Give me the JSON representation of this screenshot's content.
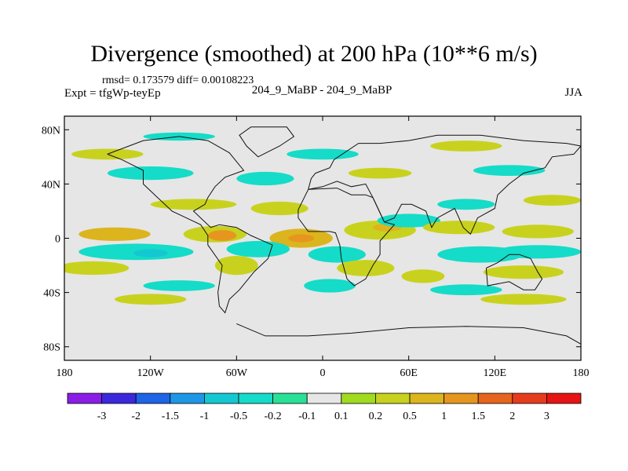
{
  "chart_data": {
    "type": "heatmap",
    "title": "Divergence (smoothed) at 200 hPa (10**6 m/s)",
    "stats_line": "rmsd= 0.173579 diff= 0.00108223",
    "expt_line": "Expt = tfgWp-teyEp",
    "cases_line": "204_9_MaBP - 204_9_MaBP",
    "season": "JJA",
    "x_axis": {
      "range": [
        -180,
        180
      ],
      "ticks": [
        {
          "value": -180,
          "label": "180"
        },
        {
          "value": -120,
          "label": "120W"
        },
        {
          "value": -60,
          "label": "60W"
        },
        {
          "value": 0,
          "label": "0"
        },
        {
          "value": 60,
          "label": "60E"
        },
        {
          "value": 120,
          "label": "120E"
        },
        {
          "value": 180,
          "label": "180"
        }
      ]
    },
    "y_axis": {
      "range": [
        -90,
        90
      ],
      "ticks": [
        {
          "value": 80,
          "label": "80N"
        },
        {
          "value": 40,
          "label": "40N"
        },
        {
          "value": 0,
          "label": "0"
        },
        {
          "value": -40,
          "label": "40S"
        },
        {
          "value": -80,
          "label": "80S"
        }
      ]
    },
    "colorbar": {
      "colors": [
        "#8a1ee6",
        "#3c28dc",
        "#1e64e6",
        "#1e96e6",
        "#14c8d2",
        "#14dcc8",
        "#28e196",
        "#e6e6e6",
        "#a0dc1e",
        "#c8d21e",
        "#dcb41e",
        "#e6961e",
        "#e6641e",
        "#e63c1e",
        "#e61414"
      ],
      "levels": [
        "-3",
        "-2",
        "-1.5",
        "-1",
        "-0.5",
        "-0.2",
        "-0.1",
        "0.1",
        "0.2",
        "0.5",
        "1",
        "1.5",
        "2",
        "3"
      ]
    },
    "features": [
      {
        "lon": -75,
        "lat": 3,
        "rx": 22,
        "ry": 6,
        "level": "0.2"
      },
      {
        "lon": -70,
        "lat": 2,
        "rx": 10,
        "ry": 4,
        "level": "1"
      },
      {
        "lon": -15,
        "lat": 0,
        "rx": 22,
        "ry": 7,
        "level": "0.5"
      },
      {
        "lon": -15,
        "lat": 0,
        "rx": 9,
        "ry": 3,
        "level": "1"
      },
      {
        "lon": 40,
        "lat": 6,
        "rx": 25,
        "ry": 7,
        "level": "0.2"
      },
      {
        "lon": 45,
        "lat": 8,
        "rx": 10,
        "ry": 3,
        "level": "0.5"
      },
      {
        "lon": 60,
        "lat": 13,
        "rx": 22,
        "ry": 5,
        "level": "-0.2"
      },
      {
        "lon": 95,
        "lat": 8,
        "rx": 25,
        "ry": 5,
        "level": "0.2"
      },
      {
        "lon": -145,
        "lat": 3,
        "rx": 25,
        "ry": 5,
        "level": "0.5"
      },
      {
        "lon": 150,
        "lat": 5,
        "rx": 25,
        "ry": 5,
        "level": "0.2"
      },
      {
        "lon": -130,
        "lat": -10,
        "rx": 40,
        "ry": 6,
        "level": "-0.2"
      },
      {
        "lon": -120,
        "lat": -11,
        "rx": 12,
        "ry": 3,
        "level": "-0.5"
      },
      {
        "lon": -45,
        "lat": -8,
        "rx": 22,
        "ry": 6,
        "level": "-0.2"
      },
      {
        "lon": 10,
        "lat": -12,
        "rx": 20,
        "ry": 6,
        "level": "-0.2"
      },
      {
        "lon": 110,
        "lat": -12,
        "rx": 30,
        "ry": 6,
        "level": "-0.2"
      },
      {
        "lon": 150,
        "lat": -10,
        "rx": 30,
        "ry": 5,
        "level": "-0.2"
      },
      {
        "lon": -160,
        "lat": -22,
        "rx": 25,
        "ry": 5,
        "level": "0.2"
      },
      {
        "lon": -60,
        "lat": -20,
        "rx": 15,
        "ry": 7,
        "level": "0.2"
      },
      {
        "lon": 30,
        "lat": -22,
        "rx": 20,
        "ry": 6,
        "level": "0.2"
      },
      {
        "lon": 70,
        "lat": -28,
        "rx": 15,
        "ry": 5,
        "level": "0.2"
      },
      {
        "lon": 140,
        "lat": -25,
        "rx": 28,
        "ry": 5,
        "level": "0.2"
      },
      {
        "lon": -100,
        "lat": -35,
        "rx": 25,
        "ry": 4,
        "level": "-0.2"
      },
      {
        "lon": 5,
        "lat": -35,
        "rx": 18,
        "ry": 5,
        "level": "-0.2"
      },
      {
        "lon": 100,
        "lat": -38,
        "rx": 25,
        "ry": 4,
        "level": "-0.2"
      },
      {
        "lon": -120,
        "lat": -45,
        "rx": 25,
        "ry": 4,
        "level": "0.2"
      },
      {
        "lon": 140,
        "lat": -45,
        "rx": 30,
        "ry": 4,
        "level": "0.2"
      },
      {
        "lon": -90,
        "lat": 25,
        "rx": 30,
        "ry": 4,
        "level": "0.2"
      },
      {
        "lon": -30,
        "lat": 22,
        "rx": 20,
        "ry": 5,
        "level": "0.2"
      },
      {
        "lon": 100,
        "lat": 25,
        "rx": 20,
        "ry": 4,
        "level": "-0.2"
      },
      {
        "lon": 160,
        "lat": 28,
        "rx": 20,
        "ry": 4,
        "level": "0.2"
      },
      {
        "lon": -120,
        "lat": 48,
        "rx": 30,
        "ry": 5,
        "level": "-0.2"
      },
      {
        "lon": -40,
        "lat": 44,
        "rx": 20,
        "ry": 5,
        "level": "-0.2"
      },
      {
        "lon": 40,
        "lat": 48,
        "rx": 22,
        "ry": 4,
        "level": "0.2"
      },
      {
        "lon": 130,
        "lat": 50,
        "rx": 25,
        "ry": 4,
        "level": "-0.2"
      },
      {
        "lon": -150,
        "lat": 62,
        "rx": 25,
        "ry": 4,
        "level": "0.2"
      },
      {
        "lon": 0,
        "lat": 62,
        "rx": 25,
        "ry": 4,
        "level": "-0.2"
      },
      {
        "lon": 100,
        "lat": 68,
        "rx": 25,
        "ry": 4,
        "level": "0.2"
      },
      {
        "lon": -100,
        "lat": 75,
        "rx": 25,
        "ry": 3,
        "level": "-0.2"
      }
    ],
    "coastlines": [
      {
        "name": "americas",
        "points": [
          [
            -150,
            62
          ],
          [
            -125,
            72
          ],
          [
            -100,
            75
          ],
          [
            -80,
            72
          ],
          [
            -65,
            63
          ],
          [
            -55,
            50
          ],
          [
            -68,
            45
          ],
          [
            -75,
            38
          ],
          [
            -80,
            30
          ],
          [
            -82,
            25
          ],
          [
            -90,
            20
          ],
          [
            -85,
            15
          ],
          [
            -78,
            8
          ],
          [
            -72,
            10
          ],
          [
            -60,
            8
          ],
          [
            -50,
            2
          ],
          [
            -35,
            -5
          ],
          [
            -38,
            -15
          ],
          [
            -48,
            -25
          ],
          [
            -58,
            -38
          ],
          [
            -65,
            -45
          ],
          [
            -68,
            -55
          ],
          [
            -72,
            -50
          ],
          [
            -73,
            -40
          ],
          [
            -70,
            -20
          ],
          [
            -80,
            -5
          ],
          [
            -80,
            2
          ],
          [
            -85,
            10
          ],
          [
            -95,
            15
          ],
          [
            -105,
            20
          ],
          [
            -115,
            30
          ],
          [
            -125,
            40
          ],
          [
            -125,
            50
          ],
          [
            -140,
            58
          ],
          [
            -150,
            62
          ]
        ]
      },
      {
        "name": "greenland",
        "points": [
          [
            -50,
            82
          ],
          [
            -25,
            82
          ],
          [
            -20,
            75
          ],
          [
            -30,
            68
          ],
          [
            -45,
            60
          ],
          [
            -53,
            68
          ],
          [
            -58,
            76
          ],
          [
            -50,
            82
          ]
        ]
      },
      {
        "name": "eurasia",
        "points": [
          [
            -10,
            36
          ],
          [
            -8,
            44
          ],
          [
            -5,
            48
          ],
          [
            5,
            52
          ],
          [
            8,
            58
          ],
          [
            25,
            70
          ],
          [
            40,
            70
          ],
          [
            60,
            72
          ],
          [
            80,
            76
          ],
          [
            110,
            76
          ],
          [
            140,
            72
          ],
          [
            170,
            70
          ],
          [
            180,
            68
          ],
          [
            175,
            62
          ],
          [
            160,
            60
          ],
          [
            155,
            52
          ],
          [
            140,
            48
          ],
          [
            130,
            40
          ],
          [
            122,
            32
          ],
          [
            120,
            22
          ],
          [
            108,
            15
          ],
          [
            103,
            3
          ],
          [
            98,
            8
          ],
          [
            92,
            22
          ],
          [
            80,
            15
          ],
          [
            76,
            8
          ],
          [
            72,
            20
          ],
          [
            62,
            25
          ],
          [
            55,
            25
          ],
          [
            50,
            15
          ],
          [
            43,
            12
          ],
          [
            35,
            30
          ],
          [
            30,
            40
          ],
          [
            20,
            38
          ],
          [
            10,
            42
          ],
          [
            0,
            38
          ],
          [
            -10,
            36
          ]
        ]
      },
      {
        "name": "africa",
        "points": [
          [
            -10,
            36
          ],
          [
            -17,
            21
          ],
          [
            -17,
            15
          ],
          [
            -10,
            5
          ],
          [
            5,
            5
          ],
          [
            9,
            4
          ],
          [
            12,
            -5
          ],
          [
            13,
            -15
          ],
          [
            17,
            -30
          ],
          [
            22,
            -35
          ],
          [
            30,
            -30
          ],
          [
            35,
            -20
          ],
          [
            40,
            -12
          ],
          [
            40,
            -2
          ],
          [
            50,
            10
          ],
          [
            43,
            12
          ],
          [
            35,
            30
          ],
          [
            30,
            32
          ],
          [
            20,
            32
          ],
          [
            10,
            37
          ],
          [
            -10,
            36
          ]
        ]
      },
      {
        "name": "australia",
        "points": [
          [
            114,
            -22
          ],
          [
            122,
            -18
          ],
          [
            130,
            -12
          ],
          [
            137,
            -12
          ],
          [
            145,
            -15
          ],
          [
            150,
            -25
          ],
          [
            153,
            -30
          ],
          [
            148,
            -38
          ],
          [
            140,
            -38
          ],
          [
            130,
            -32
          ],
          [
            115,
            -35
          ],
          [
            114,
            -22
          ]
        ]
      },
      {
        "name": "antarctica",
        "points": [
          [
            -60,
            -63
          ],
          [
            -40,
            -72
          ],
          [
            -10,
            -72
          ],
          [
            20,
            -70
          ],
          [
            60,
            -66
          ],
          [
            100,
            -65
          ],
          [
            140,
            -66
          ],
          [
            170,
            -72
          ],
          [
            180,
            -78
          ]
        ]
      }
    ]
  }
}
